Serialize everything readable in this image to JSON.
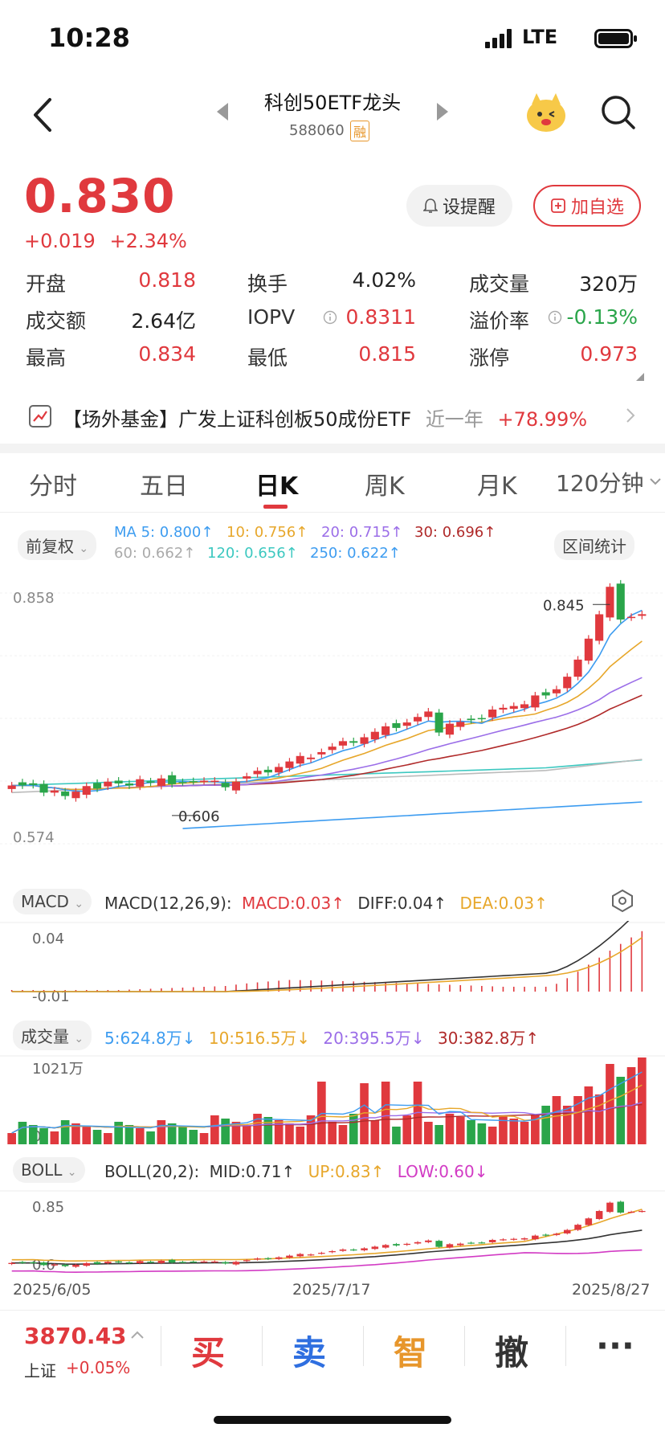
{
  "status_bar": {
    "time": "10:28",
    "network": "LTE"
  },
  "header": {
    "title": "科创50ETF龙头",
    "code": "588060",
    "badge": "融"
  },
  "price": {
    "last": "0.830",
    "change": "+0.019",
    "change_pct": "+2.34%"
  },
  "actions": {
    "remind": "设提醒",
    "add_watch": "加自选"
  },
  "quotes": [
    {
      "label": "开盘",
      "value": "0.818",
      "color": "red"
    },
    {
      "label": "换手",
      "value": "4.02%",
      "color": "black"
    },
    {
      "label": "成交量",
      "value": "320万",
      "color": "black"
    },
    {
      "label": "成交额",
      "value": "2.64亿",
      "color": "black"
    },
    {
      "label": "IOPV",
      "value": "0.8311",
      "color": "red"
    },
    {
      "label": "溢价率",
      "value": "-0.13%",
      "color": "green"
    },
    {
      "label": "最高",
      "value": "0.834",
      "color": "red"
    },
    {
      "label": "最低",
      "value": "0.815",
      "color": "red"
    },
    {
      "label": "涨停",
      "value": "0.973",
      "color": "red"
    }
  ],
  "fund": {
    "text": "【场外基金】广发上证科创板50成份ETF",
    "period": "近一年",
    "return": "+78.99%"
  },
  "tabs": [
    "分时",
    "五日",
    "日K",
    "周K",
    "月K",
    "120分钟"
  ],
  "active_tab": "日K",
  "kline": {
    "adjust": "前复权",
    "range_stats": "区间统计",
    "ma": [
      {
        "label": "MA 5: 0.800↑",
        "color": "#3d9cf0"
      },
      {
        "label": "10: 0.756↑",
        "color": "#e7a72b"
      },
      {
        "label": "20: 0.715↑",
        "color": "#9b6ee8"
      },
      {
        "label": "30: 0.696↑",
        "color": "#b02a2a"
      },
      {
        "label": "60: 0.662↑",
        "color": "#aaaaaa"
      },
      {
        "label": "120: 0.656↑",
        "color": "#3cc8c0"
      },
      {
        "label": "250: 0.622↑",
        "color": "#3d9cf0"
      }
    ],
    "y_max_label": "0.858",
    "y_min_label": "0.574",
    "high_label": "0.845",
    "low_label": "0.606"
  },
  "macd": {
    "name": "MACD",
    "params": "MACD(12,26,9):",
    "macd": "MACD:0.03↑",
    "diff": "DIFF:0.04↑",
    "dea": "DEA:0.03↑",
    "y_top": "0.04",
    "y_bottom": "-0.01"
  },
  "volume": {
    "name": "成交量",
    "ma5": "5:624.8万↓",
    "ma10": "10:516.5万↓",
    "ma20": "20:395.5万↓",
    "ma30": "30:382.8万↑",
    "y_top": "1021万",
    "y_bottom": "0"
  },
  "boll": {
    "name": "BOLL",
    "params": "BOLL(20,2):",
    "mid": "MID:0.71↑",
    "up": "UP:0.83↑",
    "low": "LOW:0.60↓",
    "y_top": "0.85",
    "y_bottom": "0.6"
  },
  "x_labels": [
    "2025/6/05",
    "2025/7/17",
    "2025/8/27"
  ],
  "bottom": {
    "index_value": "3870.43",
    "index_name": "上证",
    "index_change": "+0.05%",
    "buy": "买",
    "sell": "卖",
    "smart": "智",
    "cancel": "撤",
    "more": "···"
  },
  "colors": {
    "up": "#e0393e",
    "down": "#2aa54a",
    "accent_orange": "#e7962b"
  }
}
